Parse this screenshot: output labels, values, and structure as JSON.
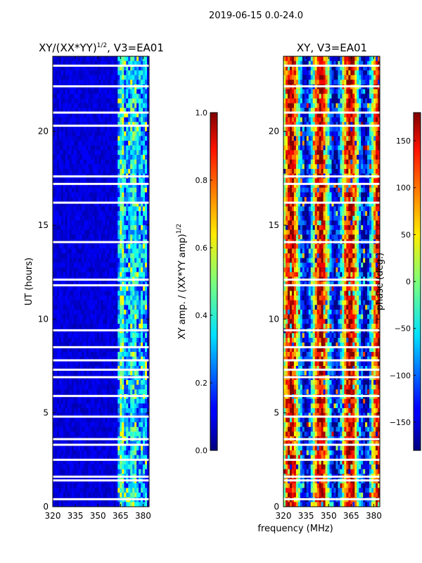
{
  "suptitle": "2019-06-15 0.0-24.0",
  "chart_data": [
    {
      "type": "heatmap",
      "title": "XY/(XX*YY)",
      "title_sup": "1/2",
      "title_suffix": ", V3=EA01",
      "xlabel": "",
      "ylabel": "UT (hours)",
      "xlim": [
        320,
        384
      ],
      "ylim": [
        0,
        24
      ],
      "xticks": [
        "320",
        "335",
        "350",
        "365",
        "380"
      ],
      "yticks": [
        "0",
        "5",
        "10",
        "15",
        "20"
      ],
      "colorbar": {
        "label": "XY amp. / (XX*YY amp)",
        "label_sup": "1/2",
        "range": [
          0.0,
          1.0
        ],
        "ticks": [
          "0.0",
          "0.2",
          "0.4",
          "0.6",
          "0.8",
          "1.0"
        ]
      },
      "bright_band_mhz": [
        363,
        382
      ],
      "blank_rows_ut": [
        23.5,
        22.4,
        21.0,
        20.3,
        17.6,
        17.2,
        16.2,
        14.1,
        12.1,
        11.8,
        9.4,
        8.5,
        7.8,
        7.3,
        6.9,
        5.9,
        4.8,
        3.6,
        3.3,
        2.5,
        1.6,
        1.4,
        0.4
      ]
    },
    {
      "type": "heatmap",
      "title": "XY, V3=EA01",
      "xlabel": "frequency (MHz)",
      "ylabel": "",
      "xlim": [
        320,
        384
      ],
      "ylim": [
        0,
        24
      ],
      "xticks": [
        "320",
        "335",
        "350",
        "365",
        "380"
      ],
      "yticks": [
        "0",
        "5",
        "10",
        "15",
        "20"
      ],
      "colorbar": {
        "label": "phase (deg.)",
        "range": [
          -180,
          180
        ],
        "ticks": [
          "150",
          "100",
          "50",
          "0",
          "−50",
          "−100",
          "−150"
        ]
      },
      "blank_rows_ut": [
        23.5,
        22.4,
        21.0,
        20.3,
        17.6,
        17.2,
        16.2,
        14.1,
        12.1,
        11.8,
        9.4,
        8.5,
        7.8,
        7.3,
        6.9,
        5.9,
        4.8,
        3.6,
        3.3,
        2.5,
        1.6,
        1.4,
        0.4
      ]
    }
  ]
}
